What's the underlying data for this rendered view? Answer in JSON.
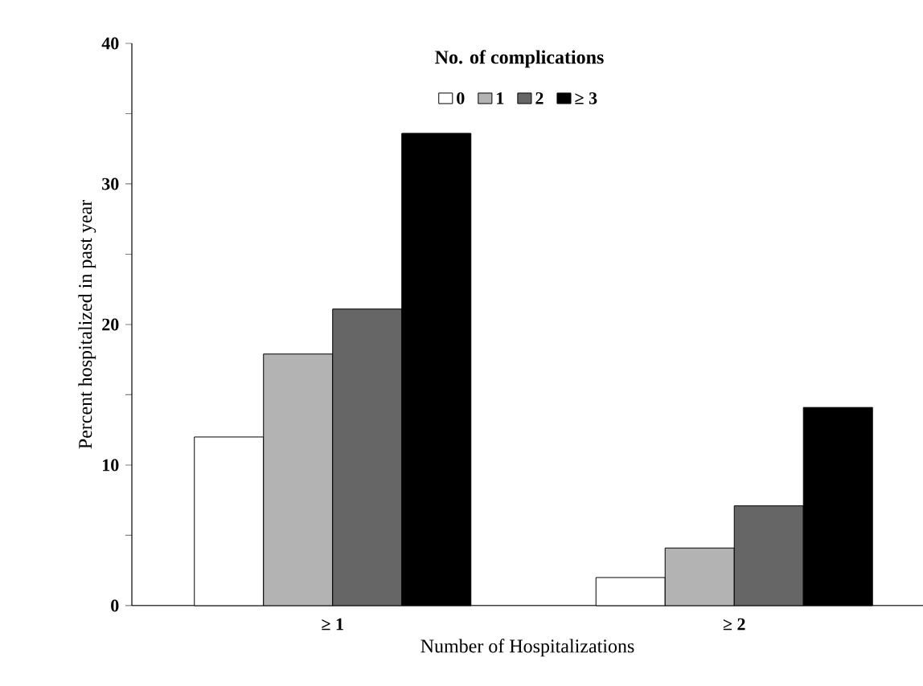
{
  "chart_data": {
    "type": "bar",
    "xlabel": "Number of Hospitalizations",
    "ylabel": "Percent hospitalized in past year",
    "legend_title": "No. of complications",
    "categories": [
      "≥ 1",
      "≥ 2"
    ],
    "series": [
      {
        "name": "0",
        "color": "#ffffff",
        "values": [
          12.0,
          2.0
        ]
      },
      {
        "name": "1",
        "color": "#b3b3b3",
        "values": [
          17.9,
          4.1
        ]
      },
      {
        "name": "2",
        "color": "#666666",
        "values": [
          21.1,
          7.1
        ]
      },
      {
        "name": "≥ 3",
        "color": "#000000",
        "values": [
          33.6,
          14.1
        ]
      }
    ],
    "ylim": [
      0,
      40
    ],
    "yticks": [
      0,
      {
        "value": 5,
        "label": null
      },
      10,
      {
        "value": 15,
        "label": null
      },
      20,
      {
        "value": 25,
        "label": null
      },
      30,
      {
        "value": 35,
        "label": null
      },
      40
    ],
    "legend": "top",
    "grid": false
  }
}
